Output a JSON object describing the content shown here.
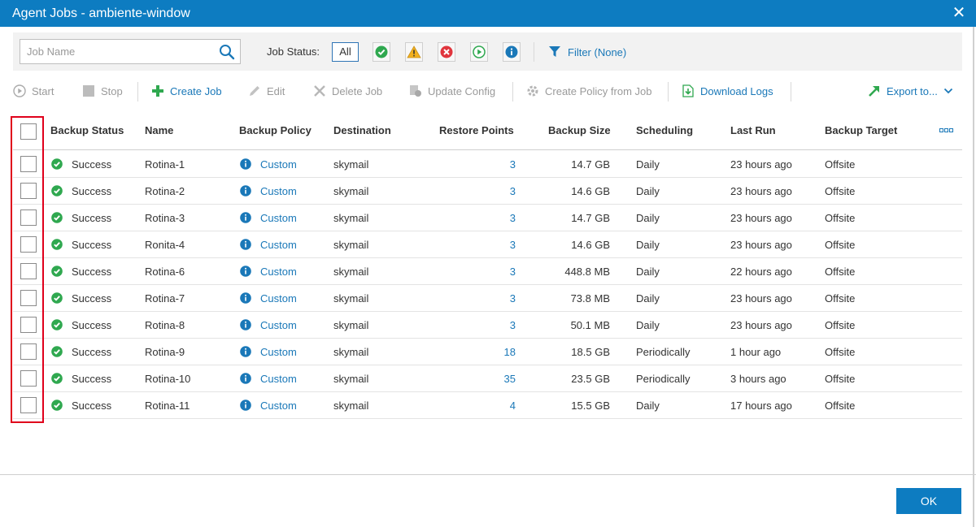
{
  "window": {
    "title": "Agent Jobs - ambiente-window"
  },
  "filter": {
    "search_placeholder": "Job Name",
    "job_status_label": "Job Status:",
    "all_label": "All",
    "filter_label": "Filter (None)"
  },
  "toolbar": {
    "start": "Start",
    "stop": "Stop",
    "create_job": "Create Job",
    "edit": "Edit",
    "delete_job": "Delete Job",
    "update_config": "Update Config",
    "create_policy": "Create Policy from Job",
    "download_logs": "Download Logs",
    "export": "Export to..."
  },
  "table": {
    "columns": [
      "Backup Status",
      "Name",
      "Backup Policy",
      "Destination",
      "Restore Points",
      "Backup Size",
      "Scheduling",
      "Last Run",
      "Backup Target"
    ],
    "rows": [
      {
        "status": "Success",
        "name": "Rotina-1",
        "policy": "Custom",
        "dest": "skymail",
        "points": "3",
        "size": "14.7 GB",
        "sched": "Daily",
        "last": "23 hours ago",
        "target": "Offsite"
      },
      {
        "status": "Success",
        "name": "Rotina-2",
        "policy": "Custom",
        "dest": "skymail",
        "points": "3",
        "size": "14.6 GB",
        "sched": "Daily",
        "last": "23 hours ago",
        "target": "Offsite"
      },
      {
        "status": "Success",
        "name": "Rotina-3",
        "policy": "Custom",
        "dest": "skymail",
        "points": "3",
        "size": "14.7 GB",
        "sched": "Daily",
        "last": "23 hours ago",
        "target": "Offsite"
      },
      {
        "status": "Success",
        "name": "Ronita-4",
        "policy": "Custom",
        "dest": "skymail",
        "points": "3",
        "size": "14.6 GB",
        "sched": "Daily",
        "last": "23 hours ago",
        "target": "Offsite"
      },
      {
        "status": "Success",
        "name": "Rotina-6",
        "policy": "Custom",
        "dest": "skymail",
        "points": "3",
        "size": "448.8 MB",
        "sched": "Daily",
        "last": "22 hours ago",
        "target": "Offsite"
      },
      {
        "status": "Success",
        "name": "Rotina-7",
        "policy": "Custom",
        "dest": "skymail",
        "points": "3",
        "size": "73.8 MB",
        "sched": "Daily",
        "last": "23 hours ago",
        "target": "Offsite"
      },
      {
        "status": "Success",
        "name": "Rotina-8",
        "policy": "Custom",
        "dest": "skymail",
        "points": "3",
        "size": "50.1 MB",
        "sched": "Daily",
        "last": "23 hours ago",
        "target": "Offsite"
      },
      {
        "status": "Success",
        "name": "Rotina-9",
        "policy": "Custom",
        "dest": "skymail",
        "points": "18",
        "size": "18.5 GB",
        "sched": "Periodically",
        "last": "1 hour ago",
        "target": "Offsite"
      },
      {
        "status": "Success",
        "name": "Rotina-10",
        "policy": "Custom",
        "dest": "skymail",
        "points": "35",
        "size": "23.5 GB",
        "sched": "Periodically",
        "last": "3 hours ago",
        "target": "Offsite"
      },
      {
        "status": "Success",
        "name": "Rotina-11",
        "policy": "Custom",
        "dest": "skymail",
        "points": "4",
        "size": "15.5 GB",
        "sched": "Daily",
        "last": "17 hours ago",
        "target": "Offsite"
      }
    ]
  },
  "footer": {
    "ok_label": "OK"
  },
  "colors": {
    "accent": "#0d7cc1",
    "link": "#1a78b8",
    "success": "#2fa84f",
    "highlight": "#e0001b"
  }
}
